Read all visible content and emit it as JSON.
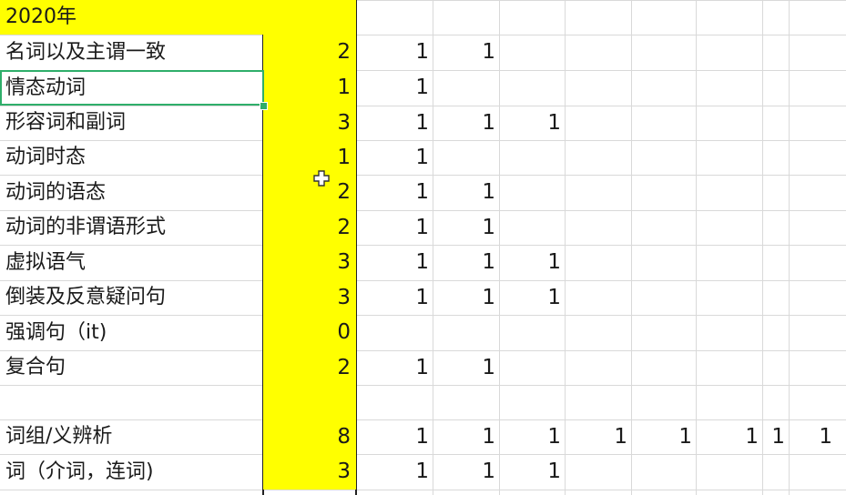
{
  "sheet": {
    "header": {
      "label": "2020年",
      "count": ""
    },
    "rows": [
      {
        "label": "名词以及主谓一致",
        "count": "2",
        "marks": [
          "1",
          "1",
          "",
          "",
          "",
          "",
          "",
          ""
        ]
      },
      {
        "label": "情态动词",
        "count": "1",
        "marks": [
          "1",
          "",
          "",
          "",
          "",
          "",
          "",
          ""
        ]
      },
      {
        "label": "形容词和副词",
        "count": "3",
        "marks": [
          "1",
          "1",
          "1",
          "",
          "",
          "",
          "",
          ""
        ]
      },
      {
        "label": "动词时态",
        "count": "1",
        "marks": [
          "1",
          "",
          "",
          "",
          "",
          "",
          "",
          ""
        ]
      },
      {
        "label": "动词的语态",
        "count": "2",
        "marks": [
          "1",
          "1",
          "",
          "",
          "",
          "",
          "",
          ""
        ]
      },
      {
        "label": "动词的非谓语形式",
        "count": "2",
        "marks": [
          "1",
          "1",
          "",
          "",
          "",
          "",
          "",
          ""
        ]
      },
      {
        "label": "虚拟语气",
        "count": "3",
        "marks": [
          "1",
          "1",
          "1",
          "",
          "",
          "",
          "",
          ""
        ]
      },
      {
        "label": "倒装及反意疑问句",
        "count": "3",
        "marks": [
          "1",
          "1",
          "1",
          "",
          "",
          "",
          "",
          ""
        ]
      },
      {
        "label": "强调句（it)",
        "count": "0",
        "marks": [
          "",
          "",
          "",
          "",
          "",
          "",
          "",
          ""
        ]
      },
      {
        "label": "复合句",
        "count": "2",
        "marks": [
          "1",
          "1",
          "",
          "",
          "",
          "",
          "",
          ""
        ]
      },
      {
        "label": "",
        "count": "",
        "marks": [
          "",
          "",
          "",
          "",
          "",
          "",
          "",
          ""
        ]
      },
      {
        "label": "词组/义辨析",
        "count": "8",
        "marks": [
          "1",
          "1",
          "1",
          "1",
          "1",
          "1",
          "1",
          "1"
        ]
      },
      {
        "label": "词（介词，连词)",
        "count": "3",
        "marks": [
          "1",
          "1",
          "1",
          "",
          "",
          "",
          "",
          ""
        ]
      }
    ],
    "selected_row": 1,
    "colors": {
      "highlight": "#ffff00",
      "selection": "#2fae6a",
      "grid": "#d9d9d9"
    }
  }
}
